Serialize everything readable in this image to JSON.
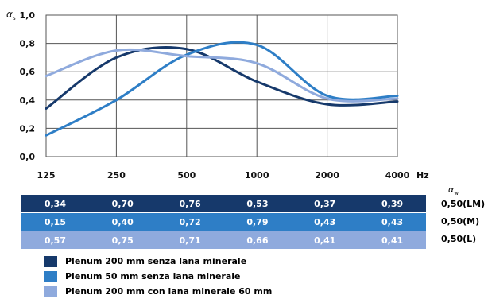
{
  "chart_data": {
    "type": "line",
    "ylabel": "α",
    "ylabel_sub": "s",
    "x_unit": "Hz",
    "x": [
      "125",
      "250",
      "500",
      "1000",
      "2000",
      "4000"
    ],
    "y_ticks": [
      "1,0",
      "0,8",
      "0,6",
      "0,4",
      "0,2",
      "0,0"
    ],
    "ylim": [
      0,
      1
    ],
    "grid": true,
    "series": [
      {
        "name": "Plenum 200 mm senza lana minerale",
        "color": "#16396b",
        "values": [
          0.34,
          0.7,
          0.76,
          0.53,
          0.37,
          0.39
        ]
      },
      {
        "name": "Plenum 50 mm senza lana minerale",
        "color": "#2e7ec6",
        "values": [
          0.15,
          0.4,
          0.72,
          0.79,
          0.43,
          0.43
        ]
      },
      {
        "name": "Plenum 200 mm con lana minerale 60 mm",
        "color": "#8faadd",
        "values": [
          0.57,
          0.75,
          0.71,
          0.66,
          0.41,
          0.41
        ]
      }
    ]
  },
  "table": {
    "weighted_label": "α",
    "weighted_sub": "w",
    "rows": [
      {
        "color": "#16396b",
        "cells": [
          "0,34",
          "0,70",
          "0,76",
          "0,53",
          "0,37",
          "0,39"
        ],
        "rating": "0,50(LM)"
      },
      {
        "color": "#2e7ec6",
        "cells": [
          "0,15",
          "0,40",
          "0,72",
          "0,79",
          "0,43",
          "0,43"
        ],
        "rating": "0,50(M)"
      },
      {
        "color": "#8faadd",
        "cells": [
          "0,57",
          "0,75",
          "0,71",
          "0,66",
          "0,41",
          "0,41"
        ],
        "rating": "0,50(L)"
      }
    ]
  },
  "legend": [
    {
      "label": "Plenum 200 mm senza lana minerale",
      "color": "#16396b"
    },
    {
      "label": "Plenum 50 mm senza lana minerale",
      "color": "#2e7ec6"
    },
    {
      "label": "Plenum 200 mm con lana minerale 60 mm",
      "color": "#8faadd"
    }
  ]
}
